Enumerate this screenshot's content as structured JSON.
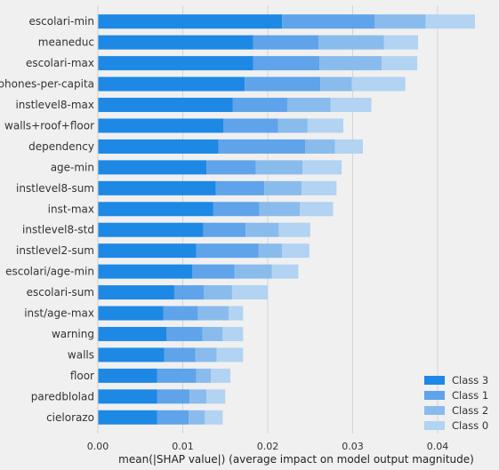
{
  "chart_data": {
    "type": "bar",
    "orientation": "horizontal",
    "stacked": true,
    "xlabel": "mean(|SHAP value|) (average impact on model output magnitude)",
    "xlim": [
      0,
      0.045
    ],
    "xticks": [
      "0.00",
      "0.01",
      "0.02",
      "0.03",
      "0.04"
    ],
    "xtick_values": [
      0,
      0.01,
      0.02,
      0.03,
      0.04
    ],
    "grid": true,
    "legend_position": "bottom-right",
    "categories": [
      "escolari-min",
      "meaneduc",
      "escolari-max",
      "phones-per-capita",
      "instlevel8-max",
      "walls+roof+floor",
      "dependency",
      "age-min",
      "instlevel8-sum",
      "inst-max",
      "instlevel8-std",
      "instlevel2-sum",
      "escolari/age-min",
      "escolari-sum",
      "inst/age-max",
      "warning",
      "walls",
      "floor",
      "paredblolad",
      "cielorazo"
    ],
    "series": [
      {
        "name": "Class 3",
        "color": "#1e88e5",
        "values": [
          0.0217,
          0.0183,
          0.0183,
          0.0173,
          0.0159,
          0.0148,
          0.0142,
          0.0128,
          0.0139,
          0.0136,
          0.0124,
          0.0116,
          0.0111,
          0.009,
          0.0077,
          0.0081,
          0.0078,
          0.007,
          0.007,
          0.007
        ]
      },
      {
        "name": "Class 1",
        "color": "#5fa3ea",
        "values": [
          0.0109,
          0.0077,
          0.0078,
          0.0089,
          0.0064,
          0.0064,
          0.0102,
          0.0058,
          0.0057,
          0.0054,
          0.005,
          0.0073,
          0.005,
          0.0035,
          0.0041,
          0.0042,
          0.0037,
          0.0046,
          0.0038,
          0.0037
        ]
      },
      {
        "name": "Class 2",
        "color": "#89bced",
        "values": [
          0.006,
          0.0077,
          0.0073,
          0.0037,
          0.0051,
          0.0035,
          0.0035,
          0.0055,
          0.0044,
          0.0048,
          0.0039,
          0.0028,
          0.0044,
          0.0033,
          0.0036,
          0.0024,
          0.0025,
          0.0017,
          0.002,
          0.0019
        ]
      },
      {
        "name": "Class 0",
        "color": "#b2d3f2",
        "values": [
          0.0058,
          0.004,
          0.0042,
          0.0063,
          0.0048,
          0.0042,
          0.0033,
          0.0046,
          0.0041,
          0.0039,
          0.0037,
          0.0032,
          0.0031,
          0.0042,
          0.0017,
          0.0024,
          0.0031,
          0.0023,
          0.0022,
          0.0021
        ]
      }
    ],
    "legend_order": [
      "Class 3",
      "Class 1",
      "Class 2",
      "Class 0"
    ]
  }
}
